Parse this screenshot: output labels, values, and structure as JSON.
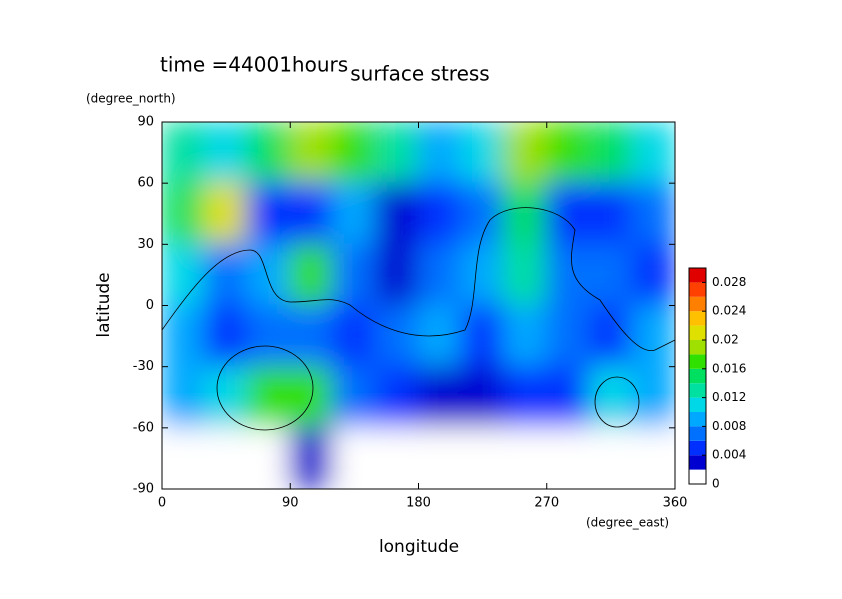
{
  "chart_data": {
    "type": "heatmap",
    "title": "surface stress",
    "annotation": "time =44001hours",
    "xlabel": "longitude",
    "ylabel": "latitude",
    "xunit": "(degree_east)",
    "yunit": "(degree_north)",
    "x": [
      15,
      45,
      75,
      105,
      135,
      165,
      195,
      225,
      255,
      285,
      315,
      345
    ],
    "y": [
      75,
      45,
      15,
      -15,
      -45,
      -75
    ],
    "values": [
      [
        0.012,
        0.01,
        0.014,
        0.018,
        0.016,
        0.012,
        0.008,
        0.01,
        0.018,
        0.016,
        0.014,
        0.01
      ],
      [
        0.014,
        0.02,
        0.004,
        0.004,
        0.008,
        0.002,
        0.004,
        0.006,
        0.014,
        0.004,
        0.004,
        0.006
      ],
      [
        0.01,
        0.006,
        0.008,
        0.016,
        0.006,
        0.002,
        0.006,
        0.008,
        0.012,
        0.006,
        0.006,
        0.004
      ],
      [
        0.008,
        0.004,
        0.006,
        0.006,
        0.004,
        0.006,
        0.008,
        0.004,
        0.008,
        0.006,
        0.004,
        0.008
      ],
      [
        0.008,
        0.01,
        0.016,
        0.016,
        0.006,
        0.004,
        0.002,
        0.002,
        0.004,
        0.004,
        0.01,
        0.008
      ],
      [
        0,
        0,
        0,
        0.002,
        0,
        0,
        0,
        0,
        0,
        0,
        0,
        0
      ]
    ],
    "xlim": [
      0,
      360
    ],
    "ylim": [
      -90,
      90
    ],
    "xticks": [
      0,
      90,
      180,
      270,
      360
    ],
    "yticks": [
      90,
      60,
      30,
      0,
      -30,
      -60,
      -90
    ],
    "colorbar": {
      "clim": [
        0,
        0.03
      ],
      "ticks": [
        0,
        0.004,
        0.008,
        0.012,
        0.016,
        0.02,
        0.024,
        0.028
      ],
      "colors": [
        "#ffffff",
        "#0000d0",
        "#0030ff",
        "#0070ff",
        "#00a8ff",
        "#00d8e8",
        "#00e0a0",
        "#00e060",
        "#30e000",
        "#a0e000",
        "#e0e000",
        "#ffc000",
        "#ff8000",
        "#ff4000",
        "#e00000"
      ]
    }
  }
}
